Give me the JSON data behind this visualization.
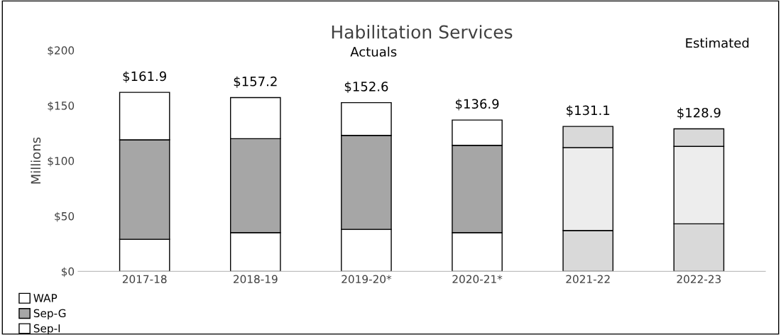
{
  "chart_data": {
    "type": "bar",
    "title": "Habilitation Services",
    "ylabel": "Millions",
    "categories": [
      "2017-18",
      "2018-19",
      "2019-20*",
      "2020-21*",
      "2021-22",
      "2022-23"
    ],
    "stacked": true,
    "series": [
      {
        "name": "Sep-I",
        "color": "#ffffff",
        "colors": [
          "#ffffff",
          "#ffffff",
          "#ffffff",
          "#ffffff",
          "#d9d9d9",
          "#d9d9d9"
        ],
        "values": [
          29,
          35,
          38,
          35,
          37,
          43
        ]
      },
      {
        "name": "Sep-G",
        "color": "#a6a6a6",
        "colors": [
          "#a6a6a6",
          "#a6a6a6",
          "#a6a6a6",
          "#a6a6a6",
          "#ededed",
          "#ededed"
        ],
        "values": [
          90,
          85,
          85,
          79,
          75,
          70
        ]
      },
      {
        "name": "WAP",
        "color": "#ffffff",
        "colors": [
          "#ffffff",
          "#ffffff",
          "#ffffff",
          "#ffffff",
          "#d9d9d9",
          "#d9d9d9"
        ],
        "values": [
          42.9,
          37.2,
          29.6,
          22.9,
          19.1,
          15.9
        ]
      }
    ],
    "totals": [
      "$161.9",
      "$157.2",
      "$152.6",
      "$136.9",
      "$131.1",
      "$128.9"
    ],
    "ylim": [
      0,
      200
    ],
    "yticks": [
      {
        "value": 0,
        "label": "$0"
      },
      {
        "value": 50,
        "label": "$50"
      },
      {
        "value": 100,
        "label": "$100"
      },
      {
        "value": 150,
        "label": "$150"
      },
      {
        "value": 200,
        "label": "$200"
      }
    ],
    "annotations": [
      "Actuals",
      "Estimated"
    ],
    "grid": false,
    "legend": "bottom left"
  }
}
